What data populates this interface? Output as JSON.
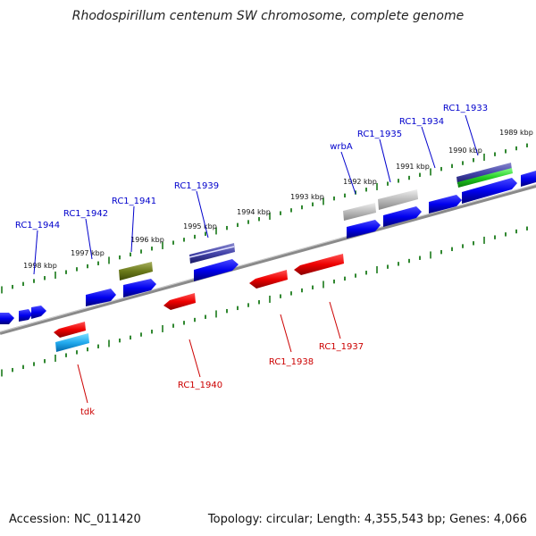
{
  "title": "Rhodospirillum centenum SW chromosome, complete genome",
  "footer": {
    "accession": "Accession: NC_011420",
    "summary": "Topology: circular; Length: 4,355,543 bp; Genes: 4,066"
  },
  "colors": {
    "forward_label": "#0000cc",
    "reverse_label": "#cc0000",
    "backbone": "#8a8a8a",
    "ticks": "#1a7a1a"
  },
  "kbp_labels": [
    "1998 kbp",
    "1997 kbp",
    "1996 kbp",
    "1995 kbp",
    "1994 kbp",
    "1993 kbp",
    "1992 kbp",
    "1991 kbp",
    "1990 kbp",
    "1989 kbp"
  ],
  "forward_genes": [
    "RC1_1944",
    "RC1_1942",
    "RC1_1941",
    "RC1_1939",
    "wrbA",
    "RC1_1935",
    "RC1_1934",
    "RC1_1933"
  ],
  "reverse_genes": [
    "tdk",
    "RC1_1940",
    "RC1_1938",
    "RC1_1937"
  ]
}
